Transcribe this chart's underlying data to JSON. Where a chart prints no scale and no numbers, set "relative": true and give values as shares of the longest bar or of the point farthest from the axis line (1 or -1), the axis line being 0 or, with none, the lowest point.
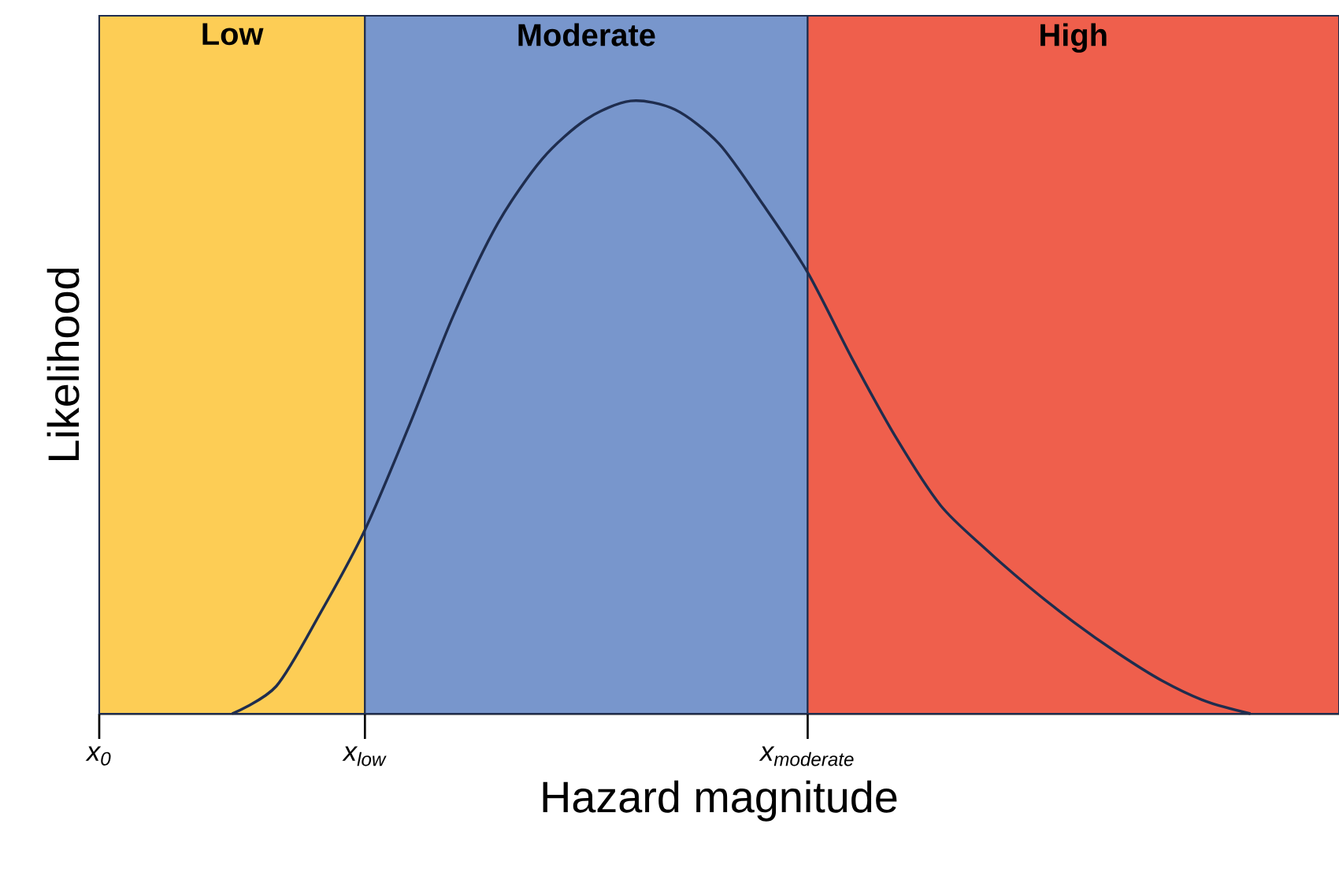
{
  "chart_data": {
    "type": "line",
    "relative": true,
    "xlabel": "Hazard magnitude",
    "ylabel": "Likelihood",
    "categories": [
      "x$_{0}$",
      null,
      null,
      null,
      null,
      null,
      "x$_{low}$",
      null,
      null,
      null,
      null,
      null,
      null,
      null,
      null,
      null,
      "x$_{moderate}$",
      null,
      null,
      null,
      null,
      null,
      null,
      null,
      null,
      null,
      null,
      null,
      null
    ],
    "bands": [
      {
        "axis": "x",
        "from": "x$_{0}$",
        "to": "x$_{low}$",
        "label": "Low",
        "color": "#fdcd55"
      },
      {
        "axis": "x",
        "from": "x$_{low}$",
        "to": "x$_{moderate}$",
        "label": "Moderate",
        "color": "#7896cc"
      }
    ],
    "annotations": [
      "High"
    ],
    "series": [
      {
        "color": "#1f2d4e",
        "values": [
          null,
          null,
          null,
          0,
          0.045,
          0.165,
          0.3,
          0.47,
          0.65,
          0.8,
          0.905,
          0.97,
          1,
          0.986,
          0.93,
          0.83,
          0.72,
          0.58,
          0.45,
          0.34,
          0.27,
          0.207,
          0.15,
          0.099,
          0.054,
          0.02,
          0,
          null,
          null
        ]
      }
    ]
  }
}
